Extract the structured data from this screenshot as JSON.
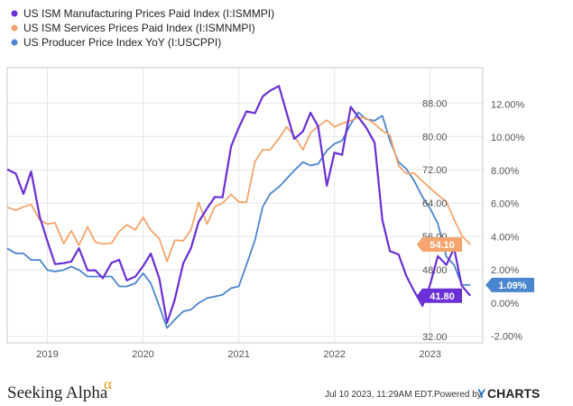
{
  "footer": {
    "brand": "Seeking Alpha",
    "brand_symbol": "α",
    "timestamp": "Jul 10 2023, 11:29AM EDT.",
    "powered_by": "Powered by",
    "provider_prefix": "Y",
    "provider_name": "CHARTS"
  },
  "chart_data": {
    "type": "line",
    "x_tick_labels": [
      "2019",
      "2020",
      "2021",
      "2022",
      "2023"
    ],
    "x_tick_values": [
      2019.0,
      2020.0,
      2021.0,
      2022.0,
      2023.0
    ],
    "xlim": [
      2018.58,
      2023.55
    ],
    "left_axis": {
      "ticks": [
        "88.00",
        "80.00",
        "72.00",
        "64.00",
        "56.00",
        "48.00",
        "32.00"
      ],
      "tick_values": [
        88,
        80,
        72,
        64,
        56,
        48,
        32
      ],
      "ylim": [
        30.5,
        96.5
      ]
    },
    "right_axis": {
      "ticks": [
        "12.00%",
        "10.00%",
        "8.00%",
        "6.00%",
        "4.00%",
        "2.00%",
        "0.00%",
        "-2.00%"
      ],
      "tick_values": [
        12,
        10,
        8,
        6,
        4,
        2,
        0,
        -2
      ],
      "ylim": [
        -2.4,
        14.2
      ]
    },
    "grid": true,
    "legend_position": "top-left",
    "series": [
      {
        "name": "US ISM Manufacturing Prices Paid Index (I:ISMMPI)",
        "color": "#6a2fd6",
        "axis": "left",
        "end_label": "41.80",
        "x": [
          2018.58,
          2018.67,
          2018.75,
          2018.83,
          2018.92,
          2019.0,
          2019.08,
          2019.17,
          2019.25,
          2019.33,
          2019.42,
          2019.5,
          2019.58,
          2019.67,
          2019.75,
          2019.83,
          2019.92,
          2020.0,
          2020.08,
          2020.17,
          2020.25,
          2020.33,
          2020.42,
          2020.5,
          2020.58,
          2020.67,
          2020.75,
          2020.83,
          2020.92,
          2021.0,
          2021.08,
          2021.17,
          2021.25,
          2021.33,
          2021.42,
          2021.5,
          2021.58,
          2021.67,
          2021.75,
          2021.83,
          2021.92,
          2022.0,
          2022.08,
          2022.17,
          2022.25,
          2022.33,
          2022.42,
          2022.5,
          2022.58,
          2022.67,
          2022.75,
          2022.83,
          2022.92,
          2023.0,
          2023.08,
          2023.17,
          2023.25,
          2023.33,
          2023.42
        ],
        "values": [
          72.1,
          71.1,
          66.2,
          71.6,
          60.7,
          54.9,
          49.4,
          49.6,
          50.0,
          53.2,
          47.9,
          47.9,
          46.0,
          49.7,
          50.4,
          45.5,
          46.4,
          48.9,
          51.9,
          45.9,
          35.3,
          40.8,
          49.6,
          53.2,
          59.5,
          62.8,
          65.5,
          65.4,
          77.6,
          82.1,
          86.0,
          85.6,
          89.6,
          91.0,
          92.1,
          85.7,
          79.4,
          81.2,
          85.7,
          82.4,
          68.2,
          76.1,
          75.6,
          87.1,
          84.6,
          82.2,
          78.5,
          60.0,
          52.5,
          51.7,
          46.6,
          43.0,
          39.4,
          44.5,
          51.3,
          49.2,
          53.2,
          44.2,
          41.8
        ]
      },
      {
        "name": "US ISM Services Prices Paid Index (I:ISMNMPI)",
        "color": "#f4a46c",
        "axis": "left",
        "end_label": "54.10",
        "x": [
          2018.58,
          2018.67,
          2018.75,
          2018.83,
          2018.92,
          2019.0,
          2019.08,
          2019.17,
          2019.25,
          2019.33,
          2019.42,
          2019.5,
          2019.58,
          2019.67,
          2019.75,
          2019.83,
          2019.92,
          2020.0,
          2020.08,
          2020.17,
          2020.25,
          2020.33,
          2020.42,
          2020.5,
          2020.58,
          2020.67,
          2020.75,
          2020.83,
          2020.92,
          2021.0,
          2021.08,
          2021.17,
          2021.25,
          2021.33,
          2021.42,
          2021.5,
          2021.58,
          2021.67,
          2021.75,
          2021.83,
          2021.92,
          2022.0,
          2022.08,
          2022.17,
          2022.25,
          2022.33,
          2022.42,
          2022.5,
          2022.58,
          2022.67,
          2022.75,
          2022.83,
          2022.92,
          2023.0,
          2023.08,
          2023.17,
          2023.25,
          2023.33,
          2023.42
        ],
        "values": [
          63.0,
          62.3,
          63.1,
          63.7,
          60.0,
          59.0,
          59.3,
          54.3,
          57.4,
          53.9,
          58.3,
          54.7,
          54.2,
          54.4,
          57.2,
          58.8,
          57.6,
          60.6,
          57.5,
          55.5,
          50.0,
          55.1,
          55.0,
          57.6,
          64.2,
          59.0,
          63.2,
          64.0,
          66.1,
          64.3,
          64.2,
          74.0,
          76.8,
          76.8,
          79.5,
          82.3,
          80.1,
          76.8,
          80.9,
          82.4,
          83.9,
          82.3,
          83.1,
          83.8,
          84.6,
          84.4,
          83.0,
          81.4,
          80.3,
          73.0,
          71.1,
          71.2,
          69.3,
          67.6,
          66.0,
          64.3,
          60.1,
          56.2,
          54.1
        ]
      },
      {
        "name": "US Producer Price Index YoY (I:USCPPI)",
        "color": "#4a86cf",
        "axis": "right",
        "end_label": "1.09%",
        "x": [
          2018.58,
          2018.67,
          2018.75,
          2018.83,
          2018.92,
          2019.0,
          2019.08,
          2019.17,
          2019.25,
          2019.33,
          2019.42,
          2019.5,
          2019.58,
          2019.67,
          2019.75,
          2019.83,
          2019.92,
          2020.0,
          2020.08,
          2020.17,
          2020.25,
          2020.33,
          2020.42,
          2020.5,
          2020.58,
          2020.67,
          2020.75,
          2020.83,
          2020.92,
          2021.0,
          2021.08,
          2021.17,
          2021.25,
          2021.33,
          2021.42,
          2021.5,
          2021.58,
          2021.67,
          2021.75,
          2021.83,
          2021.92,
          2022.0,
          2022.08,
          2022.17,
          2022.25,
          2022.33,
          2022.42,
          2022.5,
          2022.58,
          2022.67,
          2022.75,
          2022.83,
          2022.92,
          2023.0,
          2023.08,
          2023.17,
          2023.25,
          2023.33,
          2023.42
        ],
        "values": [
          3.3,
          3.0,
          3.0,
          2.6,
          2.6,
          2.0,
          1.9,
          2.0,
          2.2,
          2.0,
          1.6,
          1.6,
          1.6,
          1.6,
          1.0,
          1.0,
          1.2,
          1.8,
          1.2,
          -0.2,
          -1.5,
          -1.0,
          -0.5,
          -0.4,
          0.0,
          0.3,
          0.4,
          0.5,
          0.9,
          1.0,
          2.3,
          3.8,
          5.8,
          6.6,
          7.0,
          7.5,
          8.0,
          8.5,
          8.3,
          8.4,
          9.2,
          9.6,
          9.8,
          10.8,
          11.5,
          11.1,
          11.0,
          11.3,
          9.8,
          8.5,
          8.1,
          7.4,
          6.4,
          5.7,
          4.8,
          2.8,
          2.3,
          1.1,
          1.09
        ]
      }
    ]
  }
}
